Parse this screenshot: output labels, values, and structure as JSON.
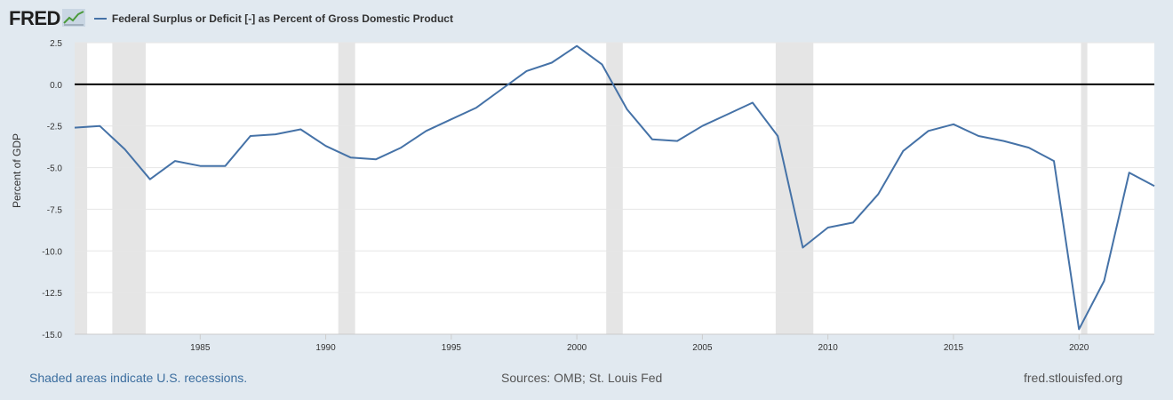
{
  "header": {
    "logo_text": "FRED",
    "logo_icon": "line-chart-icon",
    "legend_label": "Federal Surplus or Deficit [-] as Percent of Gross Domestic Product"
  },
  "colors": {
    "series": "#4572a7",
    "background": "#e1e9f0",
    "plot": "#ffffff",
    "recession": "#e5e5e5",
    "zero_line": "#000000"
  },
  "footer": {
    "left": "Shaded areas indicate U.S. recessions.",
    "center": "Sources: OMB; St. Louis Fed",
    "right": "fred.stlouisfed.org"
  },
  "chart_data": {
    "type": "line",
    "title": "",
    "xlabel": "",
    "ylabel": "Percent of GDP",
    "xlim": [
      1980,
      2023
    ],
    "ylim": [
      -15,
      2.5
    ],
    "y_ticks": [
      2.5,
      0,
      -2.5,
      -5,
      -7.5,
      -10,
      -12.5,
      -15
    ],
    "y_tick_labels": [
      "2.5",
      "0.0",
      "-2.5",
      "-5.0",
      "-7.5",
      "-10.0",
      "-12.5",
      "-15.0"
    ],
    "x_ticks": [
      1985,
      1990,
      1995,
      2000,
      2005,
      2010,
      2015,
      2020
    ],
    "x_tick_labels": [
      "1985",
      "1990",
      "1995",
      "2000",
      "2005",
      "2010",
      "2015",
      "2020"
    ],
    "grid": true,
    "recessions": [
      [
        1980.0,
        1980.5
      ],
      [
        1981.5,
        1982.83
      ],
      [
        1990.5,
        1991.17
      ],
      [
        2001.17,
        2001.83
      ],
      [
        2007.92,
        2009.42
      ],
      [
        2020.08,
        2020.33
      ]
    ],
    "series": [
      {
        "name": "Federal Surplus or Deficit [-] as Percent of Gross Domestic Product",
        "x": [
          1980,
          1981,
          1982,
          1983,
          1984,
          1985,
          1986,
          1987,
          1988,
          1989,
          1990,
          1991,
          1992,
          1993,
          1994,
          1995,
          1996,
          1997,
          1998,
          1999,
          2000,
          2001,
          2002,
          2003,
          2004,
          2005,
          2006,
          2007,
          2008,
          2009,
          2010,
          2011,
          2012,
          2013,
          2014,
          2015,
          2016,
          2017,
          2018,
          2019,
          2020,
          2021,
          2022,
          2023
        ],
        "y": [
          -2.6,
          -2.5,
          -3.9,
          -5.7,
          -4.6,
          -4.9,
          -4.9,
          -3.1,
          -3.0,
          -2.7,
          -3.7,
          -4.4,
          -4.5,
          -3.8,
          -2.8,
          -2.1,
          -1.4,
          -0.3,
          0.8,
          1.3,
          2.3,
          1.2,
          -1.5,
          -3.3,
          -3.4,
          -2.5,
          -1.8,
          -1.1,
          -3.1,
          -9.8,
          -8.6,
          -8.3,
          -6.6,
          -4.0,
          -2.8,
          -2.4,
          -3.1,
          -3.4,
          -3.8,
          -4.6,
          -14.7,
          -11.8,
          -5.3,
          -6.1
        ]
      }
    ]
  }
}
